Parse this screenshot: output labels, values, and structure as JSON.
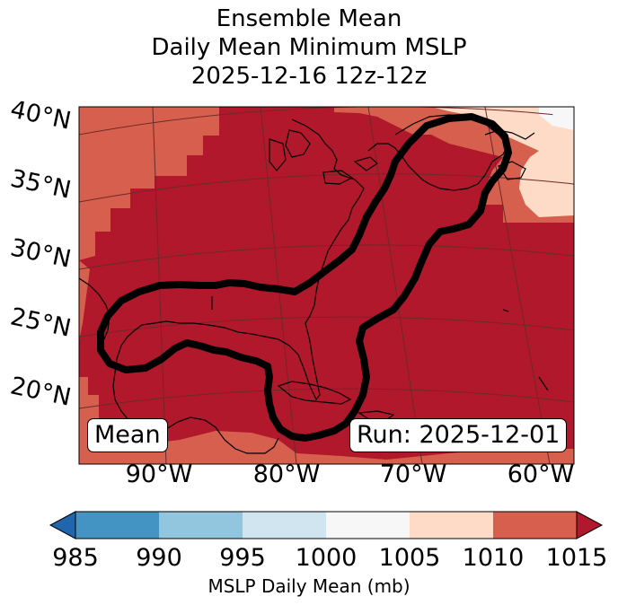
{
  "title": {
    "line1": "Ensemble Mean",
    "line2": "Daily Mean Minimum MSLP",
    "line3": "2025-12-16 12z-12z"
  },
  "map": {
    "lat_labels": [
      "40°N",
      "35°N",
      "30°N",
      "25°N",
      "20°N"
    ],
    "lon_labels": [
      "90°W",
      "80°W",
      "70°W",
      "60°W"
    ],
    "mean_tag": "Mean",
    "run_tag": "Run: 2025-12-01",
    "contour_color": "#000000",
    "coastline_color": "#000000"
  },
  "colorbar": {
    "label": "MSLP Daily Mean (mb)",
    "ticks": [
      "985",
      "990",
      "995",
      "1000",
      "1005",
      "1010",
      "1015"
    ],
    "colors": [
      "#2166ac",
      "#4393c3",
      "#92c5de",
      "#d1e5f0",
      "#f7f7f7",
      "#fddbc7",
      "#d6604d",
      "#b2182b"
    ],
    "extend": "both"
  }
}
